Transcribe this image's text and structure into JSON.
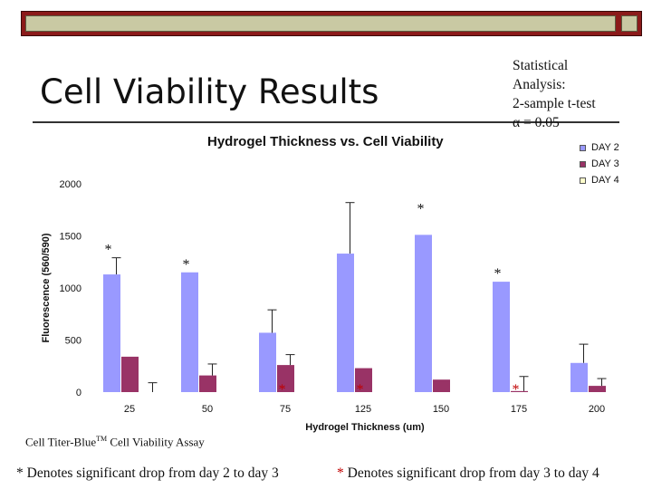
{
  "slide": {
    "title": "Cell Viability Results",
    "stats_lines": [
      "Statistical",
      "Analysis:",
      "2-sample t-test",
      "α = 0.05"
    ],
    "assay_caption_main": "Cell Titer-Blue",
    "assay_caption_tm": "TM",
    "assay_caption_tail": " Cell Viability Assay",
    "footnote_left_star": "*",
    "footnote_left_text": " Denotes significant drop from day 2 to day 3",
    "footnote_right_star": "*",
    "footnote_right_text": " Denotes significant drop from day 3 to day 4"
  },
  "colors": {
    "topbar": "#8b1a1a",
    "topbar_inner": "#c9c9a3",
    "day2": "#9999ff",
    "day3": "#993366",
    "day4": "#ffffcc",
    "significance_day2_day3": "#111111",
    "significance_day3_day4": "#c00000"
  },
  "chart_data": {
    "type": "bar",
    "title": "Hydrogel Thickness vs. Cell Viability",
    "xlabel": "Hydrogel Thickness (um)",
    "ylabel": "Fluorescence (560/590)",
    "categories": [
      "25",
      "50",
      "75",
      "125",
      "150",
      "175",
      "200"
    ],
    "ylim": [
      0,
      2000
    ],
    "yticks": [
      "0",
      "500",
      "1000",
      "1500",
      "2000"
    ],
    "grid": false,
    "legend_position": "top-right",
    "series": [
      {
        "name": "DAY 2",
        "values": [
          1130,
          1150,
          570,
          1330,
          1510,
          1060,
          280
        ],
        "error": [
          160,
          0,
          220,
          490,
          0,
          0,
          180
        ]
      },
      {
        "name": "DAY 3",
        "values": [
          340,
          160,
          260,
          230,
          120,
          10,
          60
        ],
        "error": [
          0,
          110,
          100,
          0,
          0,
          140,
          70
        ]
      },
      {
        "name": "DAY 4",
        "values": [
          0,
          0,
          0,
          0,
          0,
          0,
          0
        ],
        "error": [
          90,
          0,
          0,
          0,
          0,
          0,
          0
        ]
      }
    ],
    "significance_markers": [
      {
        "category": "25",
        "series": "DAY 2",
        "label": "*",
        "type": "day2_to_day3"
      },
      {
        "category": "50",
        "series": "DAY 2",
        "label": "*",
        "type": "day2_to_day3"
      },
      {
        "category": "75",
        "series": "DAY 3",
        "label": "*",
        "type": "day3_to_day4"
      },
      {
        "category": "125",
        "series": "DAY 3",
        "label": "*",
        "type": "day3_to_day4"
      },
      {
        "category": "125",
        "series": "DAY 2",
        "label": "*",
        "type": "day2_to_day3",
        "position": "upper"
      },
      {
        "category": "175",
        "series": "DAY 2",
        "label": "*",
        "type": "day2_to_day3"
      },
      {
        "category": "175",
        "series": "DAY 3",
        "label": "*",
        "type": "day3_to_day4"
      }
    ]
  }
}
